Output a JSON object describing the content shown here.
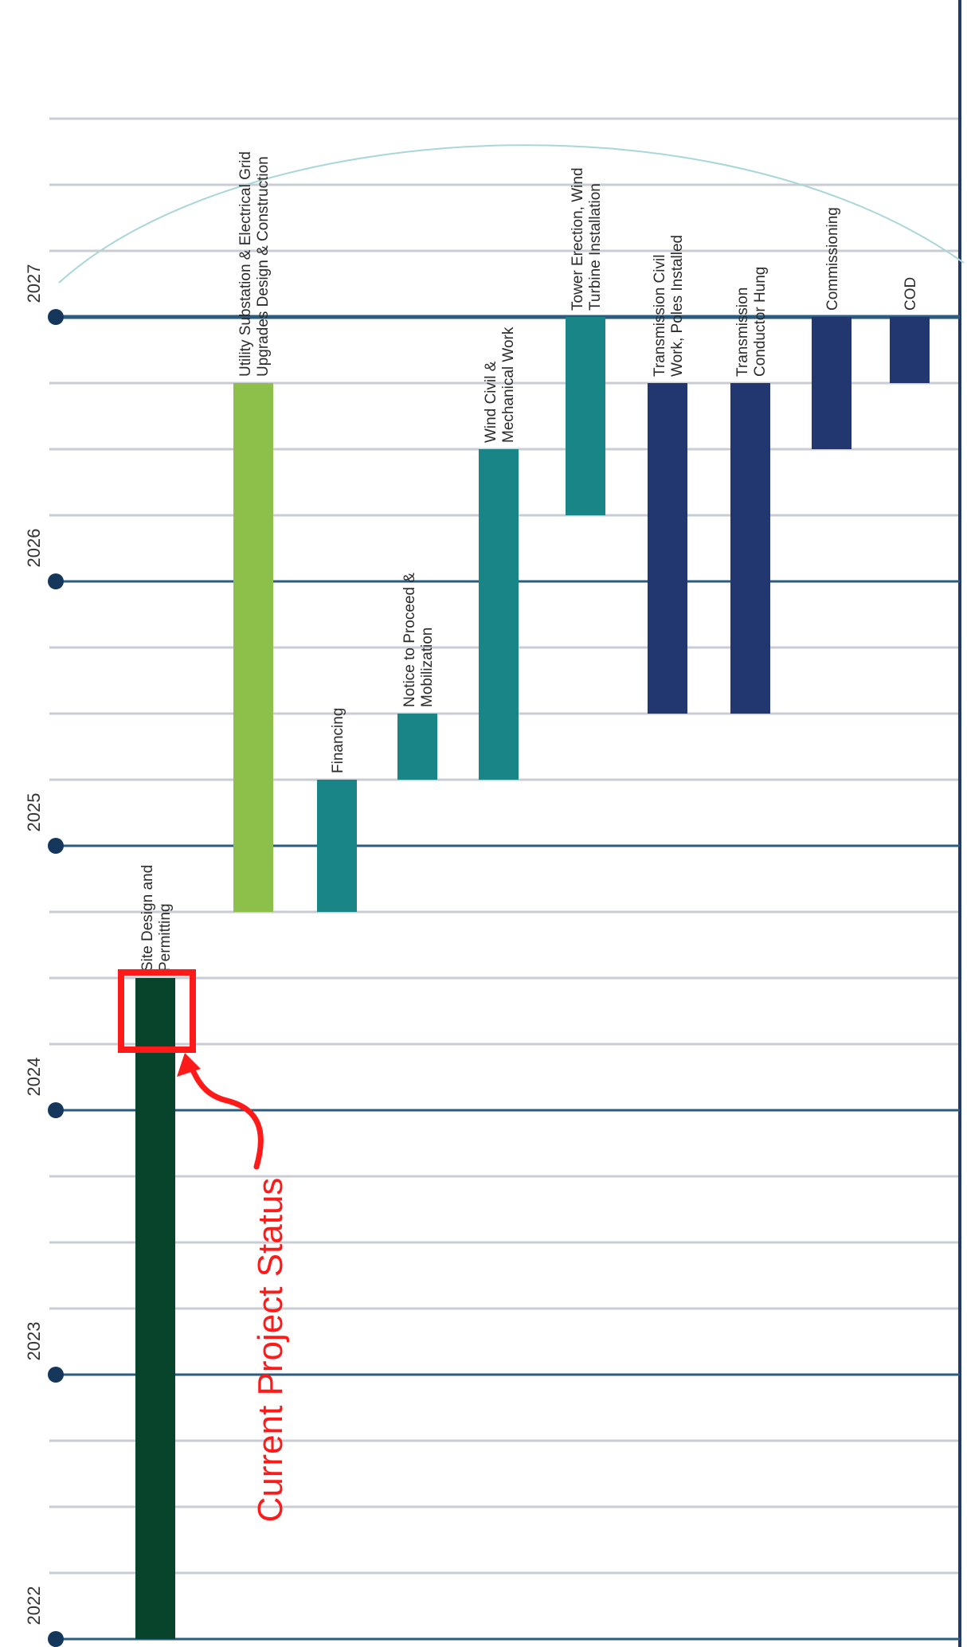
{
  "chart_data": {
    "type": "gantt",
    "orientation": "vertical",
    "years": [
      "2022",
      "2023",
      "2024",
      "2025",
      "2026",
      "2027"
    ],
    "time_range": [
      2022.0,
      2028.0
    ],
    "tasks": [
      {
        "label_lines": [
          "Site Design and",
          "Permitting"
        ],
        "start": 2022.0,
        "end": 2024.5,
        "color": "#08432b"
      },
      {
        "label_lines": [
          "Utility Substation & Electrical Grid",
          "Upgrades Design & Construction"
        ],
        "start": 2024.75,
        "end": 2026.75,
        "color": "#8cc04b"
      },
      {
        "label_lines": [
          "Financing"
        ],
        "start": 2024.75,
        "end": 2025.25,
        "color": "#1a8587"
      },
      {
        "label_lines": [
          "Notice to Proceed &",
          "Mobilization"
        ],
        "start": 2025.25,
        "end": 2025.5,
        "color": "#1a8587"
      },
      {
        "label_lines": [
          "Wind Civil &",
          "Mechanical Work"
        ],
        "start": 2025.25,
        "end": 2026.5,
        "color": "#1a8587"
      },
      {
        "label_lines": [
          "Tower Erection, Wind",
          "Turbine Installation"
        ],
        "start": 2026.25,
        "end": 2027.0,
        "color": "#1a8587"
      },
      {
        "label_lines": [
          "Transmission Civil",
          "Work, Poles Installed"
        ],
        "start": 2025.5,
        "end": 2026.75,
        "color": "#22376f"
      },
      {
        "label_lines": [
          "Transmission",
          "Conductor Hung"
        ],
        "start": 2025.5,
        "end": 2026.75,
        "color": "#22376f"
      },
      {
        "label_lines": [
          "Commissioning"
        ],
        "start": 2026.5,
        "end": 2027.0,
        "color": "#22376f"
      },
      {
        "label_lines": [
          "COD"
        ],
        "start": 2026.75,
        "end": 2027.0,
        "color": "#22376f"
      }
    ],
    "annotation": {
      "text": "Current Project Status",
      "highlight_range": [
        2024.25,
        2024.5
      ],
      "task_index": 0,
      "color": "#ff1a1a"
    },
    "colors": {
      "grid": "#c9ccd4",
      "year_line": "#2a5c80",
      "marker": "#15375c",
      "arc": "#a9d6d9"
    }
  }
}
